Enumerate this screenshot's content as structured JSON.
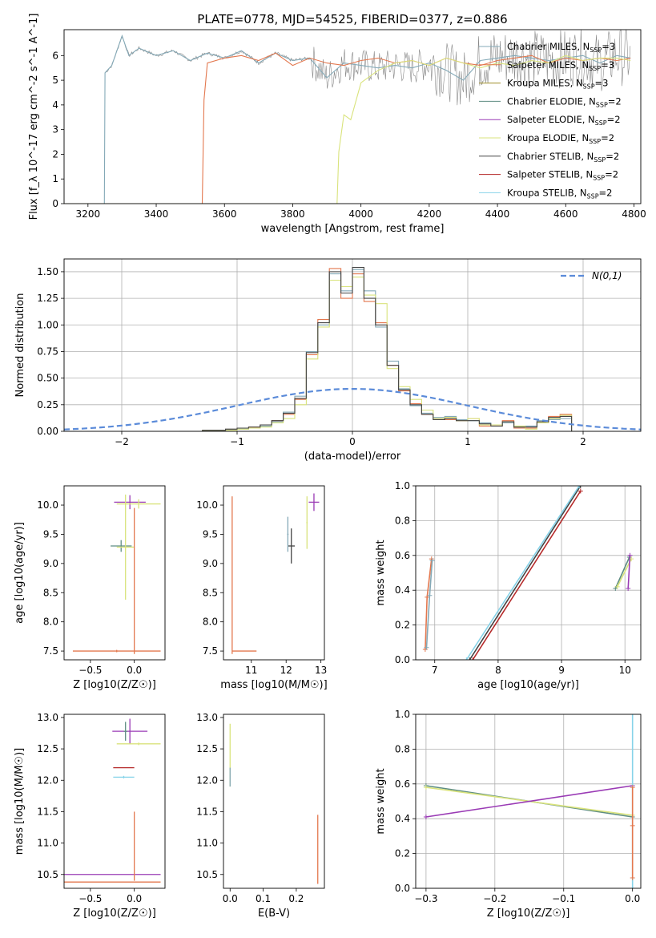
{
  "figure": {
    "title": "PLATE=0778, MJD=54525, FIBERID=0377, z=0.886"
  },
  "colors": {
    "chabrier_miles": "#84a9b7",
    "salpeter_miles": "#e3784f",
    "kroupa_miles": "#9e8e27",
    "chabrier_elodie": "#5e8d83",
    "salpeter_elodie": "#9a3bb5",
    "kroupa_elodie": "#d9e37c",
    "chabrier_stelib": "#444444",
    "salpeter_stelib": "#b52a2a",
    "kroupa_stelib": "#86d3e9",
    "data": "#888888",
    "gauss": "#5b8bd9"
  },
  "chart_data": [
    {
      "id": "spectrum",
      "type": "line",
      "title": "",
      "xlabel": "wavelength [Angstrom, rest frame]",
      "ylabel": "Flux [f_λ 10^-17 erg cm^-2 s^-1 A^-1]",
      "xlim": [
        3130,
        4820
      ],
      "ylim": [
        0,
        7.05
      ],
      "xticks": [
        3200,
        3400,
        3600,
        3800,
        4000,
        4200,
        4400,
        4600,
        4800
      ],
      "yticks": [
        0,
        1,
        2,
        3,
        4,
        5,
        6
      ],
      "legend_location": "right",
      "legend": [
        {
          "label": "Chabrier MILES, N_SSP=3",
          "color_key": "chabrier_miles"
        },
        {
          "label": "Salpeter MILES, N_SSP=3",
          "color_key": "salpeter_miles"
        },
        {
          "label": "Kroupa MILES, N_SSP=3",
          "color_key": "kroupa_miles"
        },
        {
          "label": "Chabrier ELODIE, N_SSP=2",
          "color_key": "chabrier_elodie"
        },
        {
          "label": "Salpeter ELODIE, N_SSP=2",
          "color_key": "salpeter_elodie"
        },
        {
          "label": "Kroupa ELODIE, N_SSP=2",
          "color_key": "kroupa_elodie"
        },
        {
          "label": "Chabrier STELIB, N_SSP=2",
          "color_key": "chabrier_stelib"
        },
        {
          "label": "Salpeter STELIB, N_SSP=2",
          "color_key": "salpeter_stelib"
        },
        {
          "label": "Kroupa STELIB, N_SSP=2",
          "color_key": "kroupa_stelib"
        }
      ],
      "series": [
        {
          "color_key": "chabrier_miles",
          "x": [
            3130,
            3248,
            3250,
            3270,
            3300,
            3320,
            3350,
            3400,
            3450,
            3500,
            3550,
            3600,
            3650,
            3700,
            3750,
            3800,
            3850,
            3900,
            3950,
            4000,
            4050,
            4100,
            4150,
            4200,
            4250,
            4300,
            4350,
            4400,
            4450,
            4500,
            4550,
            4600,
            4650,
            4700,
            4750,
            4790
          ],
          "y": [
            0,
            0,
            5.3,
            5.6,
            6.8,
            6.0,
            6.3,
            6.0,
            6.2,
            5.8,
            6.1,
            5.9,
            6.2,
            5.7,
            6.1,
            5.8,
            5.9,
            5.1,
            5.7,
            5.6,
            5.5,
            5.6,
            5.5,
            5.7,
            5.4,
            5.0,
            5.8,
            5.9,
            6.0,
            5.9,
            5.8,
            5.9,
            6.0,
            5.7,
            6.0,
            5.9
          ]
        },
        {
          "color_key": "salpeter_miles",
          "x": [
            3130,
            3535,
            3540,
            3550,
            3600,
            3650,
            3700,
            3750,
            3800,
            3850,
            3900,
            3950,
            4000,
            4050,
            4100,
            4150,
            4200,
            4250,
            4300,
            4350,
            4400,
            4450,
            4500,
            4550,
            4600,
            4650,
            4700,
            4750,
            4790
          ],
          "y": [
            0,
            0,
            4.2,
            5.7,
            5.9,
            6.0,
            5.8,
            6.1,
            5.6,
            5.9,
            5.7,
            5.6,
            5.8,
            5.9,
            5.7,
            5.8,
            5.6,
            5.9,
            5.7,
            5.6,
            5.8,
            5.9,
            6.0,
            5.7,
            5.9,
            5.8,
            5.9,
            5.8,
            5.9
          ]
        },
        {
          "color_key": "kroupa_elodie",
          "x": [
            3130,
            3930,
            3935,
            3950,
            3970,
            4000,
            4050,
            4100,
            4150,
            4200,
            4250,
            4300,
            4350,
            4400,
            4450,
            4500,
            4550,
            4600,
            4650,
            4700,
            4750,
            4790
          ],
          "y": [
            0,
            0,
            2.1,
            3.6,
            3.4,
            4.9,
            5.4,
            5.7,
            5.8,
            5.6,
            5.9,
            5.7,
            5.5,
            5.7,
            5.6,
            5.8,
            5.7,
            6.0,
            5.8,
            5.9,
            5.9,
            5.8
          ]
        }
      ]
    },
    {
      "id": "residuals",
      "type": "line",
      "title": "",
      "xlabel": "(data-model)/error",
      "ylabel": "Normed distribution",
      "xlim": [
        -2.5,
        2.5
      ],
      "ylim": [
        0,
        1.62
      ],
      "xticks": [
        -2,
        -1,
        0,
        1,
        2
      ],
      "yticks": [
        0.0,
        0.25,
        0.5,
        0.75,
        1.0,
        1.25,
        1.5
      ],
      "legend_location": "top-right",
      "gauss_label": "N(0,1)",
      "bin_edges": [
        -1.5,
        -1.4,
        -1.3,
        -1.2,
        -1.1,
        -1.0,
        -0.9,
        -0.8,
        -0.7,
        -0.6,
        -0.5,
        -0.4,
        -0.3,
        -0.2,
        -0.1,
        0.0,
        0.1,
        0.2,
        0.3,
        0.4,
        0.5,
        0.6,
        0.7,
        0.8,
        0.9,
        1.0,
        1.1,
        1.2,
        1.3,
        1.4,
        1.5,
        1.6,
        1.7,
        1.8,
        1.9
      ],
      "series": [
        {
          "color_key": "salpeter_miles",
          "values": [
            0.0,
            0.0,
            0.01,
            0.01,
            0.02,
            0.03,
            0.04,
            0.06,
            0.1,
            0.16,
            0.3,
            0.72,
            1.05,
            1.53,
            1.25,
            1.48,
            1.22,
            1.02,
            0.62,
            0.38,
            0.26,
            0.16,
            0.12,
            0.11,
            0.1,
            0.12,
            0.05,
            0.05,
            0.1,
            0.03,
            0.03,
            0.09,
            0.14,
            0.16
          ]
        },
        {
          "color_key": "chabrier_miles",
          "values": [
            0.0,
            0.0,
            0.01,
            0.01,
            0.02,
            0.02,
            0.03,
            0.05,
            0.09,
            0.18,
            0.33,
            0.75,
            1.0,
            1.48,
            1.32,
            1.52,
            1.32,
            0.98,
            0.66,
            0.4,
            0.24,
            0.17,
            0.13,
            0.14,
            0.11,
            0.1,
            0.08,
            0.06,
            0.08,
            0.04,
            0.05,
            0.1,
            0.11,
            0.12
          ]
        },
        {
          "color_key": "kroupa_elodie",
          "values": [
            0.0,
            0.0,
            0.01,
            0.01,
            0.01,
            0.02,
            0.03,
            0.04,
            0.08,
            0.12,
            0.25,
            0.68,
            0.98,
            1.42,
            1.36,
            1.45,
            1.28,
            1.2,
            0.59,
            0.42,
            0.3,
            0.2,
            0.12,
            0.13,
            0.1,
            0.12,
            0.06,
            0.06,
            0.09,
            0.05,
            0.02,
            0.08,
            0.12,
            0.15
          ]
        },
        {
          "color_key": "chabrier_stelib",
          "values": [
            0.0,
            0.0,
            0.01,
            0.01,
            0.02,
            0.03,
            0.04,
            0.06,
            0.1,
            0.17,
            0.31,
            0.74,
            1.02,
            1.5,
            1.3,
            1.54,
            1.25,
            1.0,
            0.62,
            0.39,
            0.25,
            0.16,
            0.11,
            0.12,
            0.1,
            0.1,
            0.07,
            0.05,
            0.09,
            0.04,
            0.04,
            0.09,
            0.13,
            0.14
          ]
        }
      ]
    },
    {
      "id": "age-vs-z",
      "type": "scatter",
      "xlabel": "Z [log10(Z/Z☉)]",
      "ylabel": "age [log10(age/yr)]",
      "xlim": [
        -0.8,
        0.35
      ],
      "ylim": [
        7.35,
        10.33
      ],
      "xticks": [
        -0.5,
        0.0
      ],
      "yticks": [
        7.5,
        8.0,
        8.5,
        9.0,
        9.5,
        10.0
      ],
      "points": [
        {
          "x": -0.05,
          "y": 10.05,
          "xerr": 0.18,
          "yerr": 0.12,
          "color_key": "salpeter_elodie"
        },
        {
          "x": 0.05,
          "y": 10.02,
          "xerr": 0.25,
          "yerr": 0.08,
          "color_key": "kroupa_elodie"
        },
        {
          "x": -0.15,
          "y": 9.3,
          "xerr": 0.12,
          "yerr": 0.1,
          "color_key": "chabrier_elodie"
        },
        {
          "x": -0.1,
          "y": 9.28,
          "xerr": 0.1,
          "yerr": 0.9,
          "color_key": "kroupa_elodie"
        },
        {
          "x": -0.2,
          "y": 7.5,
          "xerr": 0.5,
          "yerr": 0.02,
          "color_key": "salpeter_miles"
        },
        {
          "x": 0.0,
          "y": 8.7,
          "xerr": 0.0,
          "yerr": 1.25,
          "color_key": "salpeter_miles"
        }
      ]
    },
    {
      "id": "age-vs-mass",
      "type": "scatter",
      "xlabel": "mass [log10(M/M☉)]",
      "ylabel": "",
      "xlim": [
        10.2,
        13.1
      ],
      "ylim": [
        7.35,
        10.33
      ],
      "xticks": [
        11,
        12,
        13
      ],
      "yticks": [
        7.5,
        8.0,
        8.5,
        9.0,
        9.5,
        10.0
      ],
      "points": [
        {
          "x": 12.8,
          "y": 10.05,
          "xerr": 0.15,
          "yerr": 0.15,
          "color_key": "salpeter_elodie"
        },
        {
          "x": 12.6,
          "y": 9.7,
          "xerr": 0.02,
          "yerr": 0.45,
          "color_key": "kroupa_elodie"
        },
        {
          "x": 12.15,
          "y": 9.3,
          "xerr": 0.1,
          "yerr": 0.3,
          "color_key": "chabrier_stelib"
        },
        {
          "x": 12.05,
          "y": 9.5,
          "xerr": 0.02,
          "yerr": 0.3,
          "color_key": "chabrier_miles"
        },
        {
          "x": 10.45,
          "y": 8.8,
          "xerr": 0.0,
          "yerr": 1.35,
          "color_key": "salpeter_miles"
        },
        {
          "x": 10.8,
          "y": 7.5,
          "xerr": 0.35,
          "yerr": 0.0,
          "color_key": "salpeter_miles"
        }
      ]
    },
    {
      "id": "massweight-vs-age",
      "type": "line",
      "xlabel": "age [log10(age/yr)]",
      "ylabel": "mass weight",
      "xlim": [
        6.7,
        10.25
      ],
      "ylim": [
        0,
        1.0
      ],
      "xticks": [
        7,
        8,
        9,
        10
      ],
      "yticks": [
        0.0,
        0.2,
        0.4,
        0.6,
        0.8,
        1.0
      ],
      "series": [
        {
          "color_key": "salpeter_miles",
          "x": [
            6.85,
            6.88,
            6.95
          ],
          "y": [
            0.06,
            0.36,
            0.58
          ]
        },
        {
          "color_key": "chabrier_miles",
          "x": [
            6.87,
            6.92,
            6.96
          ],
          "y": [
            0.07,
            0.37,
            0.57
          ]
        },
        {
          "color_key": "chabrier_stelib",
          "x": [
            7.55,
            9.3
          ],
          "y": [
            0.0,
            1.0
          ]
        },
        {
          "color_key": "salpeter_stelib",
          "x": [
            7.6,
            9.3
          ],
          "y": [
            0.0,
            0.97
          ]
        },
        {
          "color_key": "kroupa_stelib",
          "x": [
            7.5,
            9.28
          ],
          "y": [
            0.0,
            1.0
          ]
        },
        {
          "color_key": "chabrier_elodie",
          "x": [
            9.85,
            10.07
          ],
          "y": [
            0.41,
            0.59
          ]
        },
        {
          "color_key": "kroupa_elodie",
          "x": [
            9.88,
            10.1
          ],
          "y": [
            0.42,
            0.58
          ]
        },
        {
          "color_key": "salpeter_elodie",
          "x": [
            10.05,
            10.08
          ],
          "y": [
            0.41,
            0.6
          ]
        }
      ]
    },
    {
      "id": "mass-vs-z",
      "type": "scatter",
      "xlabel": "Z [log10(Z/Z☉)]",
      "ylabel": "mass [log10(M/M☉)]",
      "xlim": [
        -0.8,
        0.35
      ],
      "ylim": [
        10.28,
        13.05
      ],
      "xticks": [
        -0.5,
        0.0
      ],
      "yticks": [
        10.5,
        11.0,
        11.5,
        12.0,
        12.5,
        13.0
      ],
      "points": [
        {
          "x": -0.05,
          "y": 12.78,
          "xerr": 0.2,
          "yerr": 0.2,
          "color_key": "salpeter_elodie"
        },
        {
          "x": -0.1,
          "y": 12.78,
          "xerr": 0.02,
          "yerr": 0.15,
          "color_key": "chabrier_elodie"
        },
        {
          "x": 0.05,
          "y": 12.58,
          "xerr": 0.25,
          "yerr": 0.02,
          "color_key": "kroupa_elodie"
        },
        {
          "x": -0.12,
          "y": 12.2,
          "xerr": 0.12,
          "yerr": 0.0,
          "color_key": "salpeter_stelib"
        },
        {
          "x": -0.12,
          "y": 12.05,
          "xerr": 0.12,
          "yerr": 0.02,
          "color_key": "kroupa_stelib"
        },
        {
          "x": -0.25,
          "y": 10.5,
          "xerr": 0.55,
          "yerr": 0.0,
          "color_key": "salpeter_elodie"
        },
        {
          "x": -0.25,
          "y": 10.38,
          "xerr": 0.55,
          "yerr": 0.0,
          "color_key": "salpeter_miles"
        },
        {
          "x": 0.0,
          "y": 10.95,
          "xerr": 0.0,
          "yerr": 0.55,
          "color_key": "salpeter_miles"
        }
      ]
    },
    {
      "id": "mass-vs-ebv",
      "type": "scatter",
      "xlabel": "E(B-V)",
      "ylabel": "",
      "xlim": [
        -0.02,
        0.285
      ],
      "ylim": [
        10.28,
        13.05
      ],
      "xticks": [
        0.0,
        0.1,
        0.2
      ],
      "yticks": [
        10.5,
        11.0,
        11.5,
        12.0,
        12.5,
        13.0
      ],
      "points": [
        {
          "x": 0.0,
          "y": 12.4,
          "xerr": 0.0,
          "yerr": 0.5,
          "color_key": "kroupa_elodie"
        },
        {
          "x": 0.0,
          "y": 12.05,
          "xerr": 0.0,
          "yerr": 0.15,
          "color_key": "chabrier_miles"
        },
        {
          "x": 0.265,
          "y": 10.9,
          "xerr": 0.0,
          "yerr": 0.55,
          "color_key": "salpeter_miles"
        }
      ]
    },
    {
      "id": "massweight-vs-z",
      "type": "line",
      "xlabel": "Z [log10(Z/Z☉)]",
      "ylabel": "mass weight",
      "xlim": [
        -0.315,
        0.012
      ],
      "ylim": [
        0,
        1.0
      ],
      "xticks": [
        -0.3,
        -0.2,
        -0.1,
        0.0
      ],
      "yticks": [
        0.0,
        0.2,
        0.4,
        0.6,
        0.8,
        1.0
      ],
      "series": [
        {
          "color_key": "chabrier_elodie",
          "x": [
            -0.3,
            0.0
          ],
          "y": [
            0.59,
            0.41
          ]
        },
        {
          "color_key": "kroupa_elodie",
          "x": [
            -0.3,
            0.0
          ],
          "y": [
            0.58,
            0.42
          ]
        },
        {
          "color_key": "salpeter_elodie",
          "x": [
            -0.3,
            0.0
          ],
          "y": [
            0.41,
            0.59
          ]
        },
        {
          "color_key": "kroupa_stelib",
          "x": [
            0.0,
            0.0
          ],
          "y": [
            0.0,
            1.0
          ]
        },
        {
          "color_key": "salpeter_miles",
          "x": [
            0.0,
            0.0,
            0.0
          ],
          "y": [
            0.06,
            0.36,
            0.58
          ]
        }
      ]
    }
  ]
}
